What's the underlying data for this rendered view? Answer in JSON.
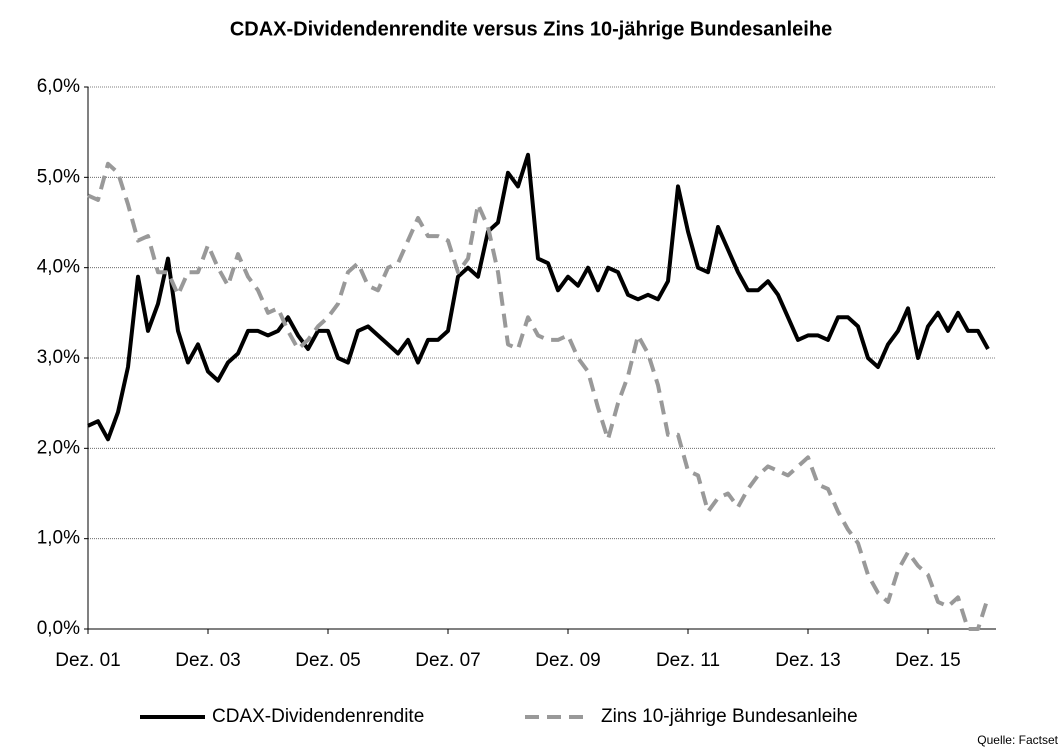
{
  "chart_data": {
    "type": "line",
    "title": "CDAX-Dividendenrendite versus Zins 10-jährige Bundesanleihe",
    "source": "Quelle: Factset",
    "categories": [
      "Dez. 01",
      null,
      null,
      null,
      null,
      null,
      null,
      null,
      null,
      null,
      null,
      null,
      "Dez. 03",
      null,
      null,
      null,
      null,
      null,
      null,
      null,
      null,
      null,
      null,
      null,
      "Dez. 05",
      null,
      null,
      null,
      null,
      null,
      null,
      null,
      null,
      null,
      null,
      null,
      "Dez. 07",
      null,
      null,
      null,
      null,
      null,
      null,
      null,
      null,
      null,
      null,
      null,
      "Dez. 09",
      null,
      null,
      null,
      null,
      null,
      null,
      null,
      null,
      null,
      null,
      null,
      "Dez. 11",
      null,
      null,
      null,
      null,
      null,
      null,
      null,
      null,
      null,
      null,
      null,
      "Dez. 13",
      null,
      null,
      null,
      null,
      null,
      null,
      null,
      null,
      null,
      null,
      null,
      "Dez. 15",
      null,
      null,
      null,
      null,
      null,
      null
    ],
    "series": [
      {
        "name": "CDAX-Dividendenrendite",
        "color": "#000000",
        "dash": false,
        "values": [
          2.25,
          2.3,
          2.1,
          2.4,
          2.9,
          3.9,
          3.3,
          3.6,
          4.1,
          3.3,
          2.95,
          3.15,
          2.85,
          2.75,
          2.95,
          3.05,
          3.3,
          3.3,
          3.25,
          3.3,
          3.45,
          3.25,
          3.1,
          3.3,
          3.3,
          3.0,
          2.95,
          3.3,
          3.35,
          3.25,
          3.15,
          3.05,
          3.2,
          2.95,
          3.2,
          3.2,
          3.3,
          3.9,
          4.0,
          3.9,
          4.4,
          4.5,
          5.05,
          4.9,
          5.25,
          4.1,
          4.05,
          3.75,
          3.9,
          3.8,
          4.0,
          3.75,
          4.0,
          3.95,
          3.7,
          3.65,
          3.7,
          3.65,
          3.85,
          4.9,
          4.4,
          4.0,
          3.95,
          4.45,
          4.2,
          3.95,
          3.75,
          3.75,
          3.85,
          3.7,
          3.45,
          3.2,
          3.25,
          3.25,
          3.2,
          3.45,
          3.45,
          3.35,
          3.0,
          2.9,
          3.15,
          3.3,
          3.55,
          3.0,
          3.35,
          3.5,
          3.3,
          3.5,
          3.3,
          3.3,
          3.1
        ]
      },
      {
        "name": "Zins 10-jährige Bundesanleihe",
        "color": "#999999",
        "dash": true,
        "values": [
          4.8,
          4.75,
          5.15,
          5.05,
          4.7,
          4.3,
          4.35,
          3.95,
          3.95,
          3.7,
          3.95,
          3.95,
          4.25,
          4.0,
          3.8,
          4.15,
          3.9,
          3.75,
          3.5,
          3.55,
          3.3,
          3.1,
          3.2,
          3.35,
          3.45,
          3.6,
          3.95,
          4.05,
          3.8,
          3.75,
          4.0,
          4.05,
          4.3,
          4.55,
          4.35,
          4.35,
          4.3,
          3.95,
          4.1,
          4.7,
          4.45,
          3.95,
          3.15,
          3.1,
          3.45,
          3.25,
          3.2,
          3.2,
          3.25,
          3.0,
          2.85,
          2.45,
          2.1,
          2.5,
          2.8,
          3.25,
          3.05,
          2.7,
          2.15,
          2.15,
          1.75,
          1.7,
          1.3,
          1.45,
          1.5,
          1.35,
          1.55,
          1.7,
          1.8,
          1.75,
          1.7,
          1.8,
          1.9,
          1.6,
          1.55,
          1.3,
          1.1,
          0.95,
          0.6,
          0.4,
          0.3,
          0.65,
          0.85,
          0.7,
          0.6,
          0.3,
          0.25,
          0.35,
          0.0,
          0.0,
          0.35
        ]
      }
    ],
    "ylim": [
      0,
      6
    ],
    "yticks": [
      {
        "value": 0,
        "label": "0,0%"
      },
      {
        "value": 1,
        "label": "1,0%"
      },
      {
        "value": 2,
        "label": "2,0%"
      },
      {
        "value": 3,
        "label": "3,0%"
      },
      {
        "value": 4,
        "label": "4,0%"
      },
      {
        "value": 5,
        "label": "5,0%"
      },
      {
        "value": 6,
        "label": "6,0%"
      }
    ],
    "grid": true,
    "legend": "bottom"
  }
}
